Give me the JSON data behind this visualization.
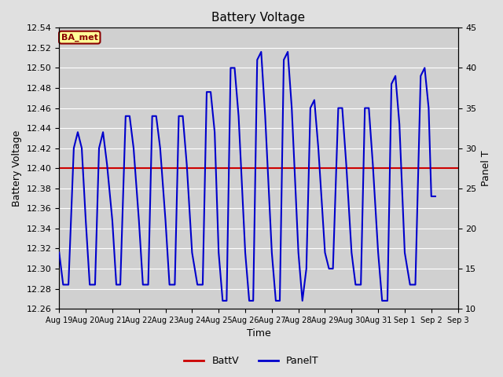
{
  "title": "Battery Voltage",
  "xlabel": "Time",
  "ylabel_left": "Battery Voltage",
  "ylabel_right": "Panel T",
  "ylim_left": [
    12.26,
    12.54
  ],
  "ylim_right": [
    10,
    45
  ],
  "battv_value": 12.4,
  "battv_color": "#cc0000",
  "panelt_color": "#0000cc",
  "fig_bg_color": "#e0e0e0",
  "plot_bg_color": "#d0d0d0",
  "legend_battv": "BattV",
  "legend_panelt": "PanelT",
  "watermark_text": "BA_met",
  "watermark_fg": "#8b0000",
  "watermark_bg": "#ffff99",
  "x_tick_labels": [
    "Aug 19",
    "Aug 20",
    "Aug 21",
    "Aug 22",
    "Aug 23",
    "Aug 24",
    "Aug 25",
    "Aug 26",
    "Aug 27",
    "Aug 28",
    "Aug 29",
    "Aug 30",
    "Aug 31",
    "Sep 1",
    "Sep 2",
    "Sep 3"
  ],
  "panelt_x": [
    0.0,
    0.15,
    0.35,
    0.55,
    0.7,
    0.85,
    1.0,
    1.15,
    1.35,
    1.5,
    1.65,
    1.8,
    2.0,
    2.15,
    2.3,
    2.5,
    2.65,
    2.8,
    3.0,
    3.15,
    3.35,
    3.5,
    3.65,
    3.8,
    4.0,
    4.15,
    4.35,
    4.5,
    4.65,
    4.8,
    5.0,
    5.2,
    5.4,
    5.55,
    5.7,
    5.85,
    6.0,
    6.15,
    6.3,
    6.45,
    6.6,
    6.75,
    7.0,
    7.15,
    7.3,
    7.45,
    7.6,
    7.75,
    8.0,
    8.15,
    8.3,
    8.45,
    8.6,
    8.75,
    9.0,
    9.15,
    9.3,
    9.45,
    9.6,
    9.75,
    10.0,
    10.15,
    10.3,
    10.5,
    10.65,
    10.8,
    11.0,
    11.15,
    11.35,
    11.5,
    11.65,
    11.8,
    12.0,
    12.15,
    12.35,
    12.5,
    12.65,
    12.8,
    13.0,
    13.2,
    13.4,
    13.6,
    13.75,
    13.9,
    14.0,
    14.15
  ],
  "panelt_y": [
    17,
    13,
    13,
    30,
    32,
    30,
    21,
    13,
    13,
    30,
    32,
    28,
    21,
    13,
    13,
    34,
    34,
    30,
    21,
    13,
    13,
    34,
    34,
    30,
    21,
    13,
    13,
    34,
    34,
    28,
    17,
    13,
    13,
    37,
    37,
    32,
    17,
    11,
    11,
    40,
    40,
    34,
    17,
    11,
    11,
    41,
    42,
    34,
    17,
    11,
    11,
    41,
    42,
    35,
    17,
    11,
    15,
    35,
    36,
    30,
    17,
    15,
    15,
    35,
    35,
    28,
    17,
    13,
    13,
    35,
    35,
    28,
    17,
    11,
    11,
    38,
    39,
    33,
    17,
    13,
    13,
    39,
    40,
    35,
    24,
    24
  ]
}
